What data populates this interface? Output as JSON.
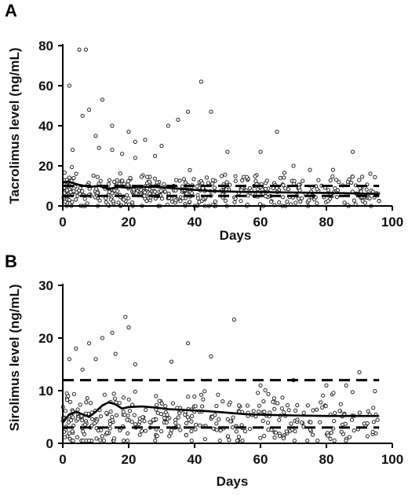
{
  "chart_data": [
    {
      "type": "scatter",
      "panel": "A",
      "xlabel": "Days",
      "ylabel": "Tacrolimus level (ng/mL)",
      "xlim": [
        0,
        100
      ],
      "ylim": [
        0,
        80
      ],
      "xticks": [
        0,
        20,
        40,
        60,
        80,
        100
      ],
      "yticks": [
        0,
        20,
        40,
        60,
        80
      ],
      "reference_lines": [
        5,
        10
      ],
      "trend": [
        [
          0,
          12
        ],
        [
          2,
          12
        ],
        [
          5,
          10.5
        ],
        [
          8,
          9.5
        ],
        [
          11,
          10
        ],
        [
          14,
          8.5
        ],
        [
          17,
          9.5
        ],
        [
          20,
          9
        ],
        [
          24,
          9.5
        ],
        [
          28,
          9.5
        ],
        [
          32,
          9
        ],
        [
          36,
          8.5
        ],
        [
          40,
          8
        ],
        [
          45,
          7.5
        ],
        [
          50,
          7.2
        ],
        [
          55,
          7
        ],
        [
          60,
          7
        ],
        [
          65,
          6.8
        ],
        [
          70,
          6.7
        ],
        [
          75,
          6.6
        ],
        [
          80,
          6.5
        ],
        [
          85,
          6.4
        ],
        [
          90,
          6.2
        ],
        [
          96,
          6
        ]
      ],
      "outliers": [
        [
          2,
          60
        ],
        [
          5,
          78
        ],
        [
          7,
          78
        ],
        [
          6,
          45
        ],
        [
          8,
          48
        ],
        [
          12,
          53
        ],
        [
          10,
          35
        ],
        [
          15,
          40
        ],
        [
          11,
          29
        ],
        [
          15,
          28
        ],
        [
          3,
          28
        ],
        [
          20,
          37
        ],
        [
          22,
          32
        ],
        [
          25,
          33
        ],
        [
          30,
          30
        ],
        [
          32,
          40
        ],
        [
          38,
          47
        ],
        [
          42,
          62
        ],
        [
          45,
          47
        ],
        [
          50,
          27
        ],
        [
          60,
          27
        ],
        [
          65,
          37
        ],
        [
          70,
          20
        ],
        [
          75,
          18
        ],
        [
          82,
          18
        ],
        [
          88,
          27
        ],
        [
          35,
          43
        ],
        [
          28,
          25
        ],
        [
          18,
          26
        ],
        [
          22,
          24
        ]
      ],
      "cluster": {
        "x_min": 0,
        "x_max": 96,
        "y_min": 0,
        "y_max": 20,
        "mode": 7,
        "count": 480,
        "seed": 11
      }
    },
    {
      "type": "scatter",
      "panel": "B",
      "xlabel": "Days",
      "ylabel": "Sirolimus level (ng/mL)",
      "xlim": [
        0,
        100
      ],
      "ylim": [
        0,
        30
      ],
      "xticks": [
        0,
        20,
        40,
        60,
        80,
        100
      ],
      "yticks": [
        0,
        10,
        20,
        30
      ],
      "reference_lines": [
        3,
        12
      ],
      "trend": [
        [
          0,
          4
        ],
        [
          2,
          5.5
        ],
        [
          4,
          6
        ],
        [
          6,
          5.5
        ],
        [
          8,
          5
        ],
        [
          10,
          6
        ],
        [
          12,
          7.2
        ],
        [
          14,
          7.8
        ],
        [
          16,
          7.4
        ],
        [
          18,
          6.6
        ],
        [
          20,
          6.9
        ],
        [
          24,
          7
        ],
        [
          28,
          6.8
        ],
        [
          32,
          6.5
        ],
        [
          38,
          6.3
        ],
        [
          44,
          6.1
        ],
        [
          50,
          5.8
        ],
        [
          56,
          5.5
        ],
        [
          62,
          5.4
        ],
        [
          70,
          5.3
        ],
        [
          80,
          5.2
        ],
        [
          90,
          5.2
        ],
        [
          96,
          5.2
        ]
      ],
      "outliers": [
        [
          4,
          18
        ],
        [
          8,
          19
        ],
        [
          12,
          20
        ],
        [
          15,
          21
        ],
        [
          19,
          24
        ],
        [
          20,
          22
        ],
        [
          22,
          15
        ],
        [
          33,
          15.5
        ],
        [
          38,
          19
        ],
        [
          45,
          16.5
        ],
        [
          52,
          23.5
        ],
        [
          60,
          11
        ],
        [
          70,
          12
        ],
        [
          80,
          11
        ],
        [
          86,
          11
        ],
        [
          90,
          13.5
        ],
        [
          2,
          16
        ],
        [
          6,
          14
        ],
        [
          10,
          16
        ],
        [
          16,
          17
        ]
      ],
      "cluster": {
        "x_min": 0,
        "x_max": 96,
        "y_min": 0.5,
        "y_max": 12,
        "mode": 4.5,
        "count": 380,
        "seed": 23
      }
    }
  ]
}
